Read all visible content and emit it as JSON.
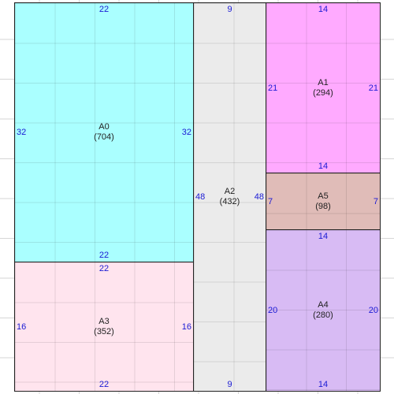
{
  "regions": {
    "A0": {
      "name": "A0",
      "value": "(704)",
      "top": "22",
      "bottom": "22",
      "left": "32",
      "right": "32",
      "color": "#aaffff"
    },
    "A1": {
      "name": "A1",
      "value": "(294)",
      "top": "14",
      "bottom": "14",
      "left": "21",
      "right": "21",
      "color": "#ffaaff"
    },
    "A2": {
      "name": "A2",
      "value": "(432)",
      "top": "9",
      "bottom": "9",
      "left": "48",
      "right": "48",
      "color": "#ebebeb"
    },
    "A3": {
      "name": "A3",
      "value": "(352)",
      "top": "22",
      "bottom": "22",
      "left": "16",
      "right": "16",
      "color": "#ffe4ee"
    },
    "A4": {
      "name": "A4",
      "value": "(280)",
      "top": "14",
      "bottom": "14",
      "left": "20",
      "right": "20",
      "color": "#d8bbf4"
    },
    "A5": {
      "name": "A5",
      "value": "(98)",
      "top": "14",
      "bottom": "14",
      "left": "7",
      "right": "7",
      "color": "#e0bcb8"
    }
  }
}
